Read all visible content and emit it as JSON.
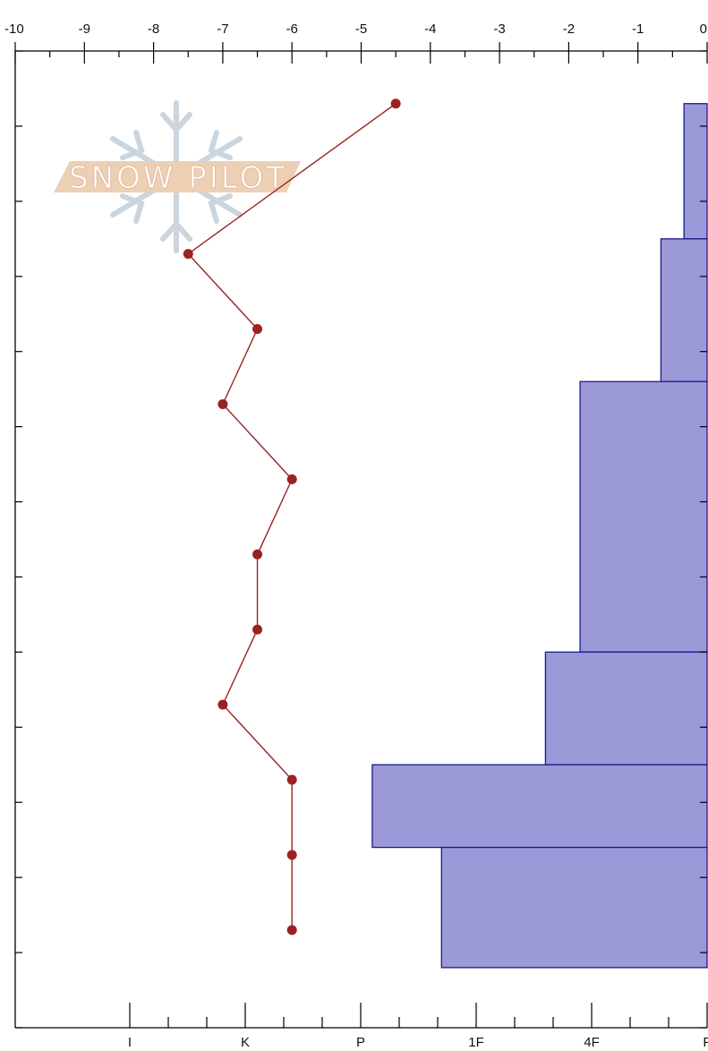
{
  "chart_data": {
    "type": "bar",
    "bar_color": "#9b99d8",
    "bar_edge_color": "#1a1a8c",
    "line_color": "#9a2222",
    "temperature_axis": {
      "position": "top",
      "range": [
        -10,
        0
      ],
      "ticks": [
        -10,
        -9,
        -8,
        -7,
        -6,
        -5,
        -4,
        -3,
        -2,
        -1,
        0
      ],
      "tick_labels": [
        "-10",
        "-9",
        "-8",
        "-7",
        "-6",
        "-5",
        "-4",
        "-3",
        "-2",
        "-1",
        "0"
      ]
    },
    "hardness_axis": {
      "position": "bottom",
      "scale": "ordinal",
      "ticks": [
        "I",
        "K",
        "P",
        "1F",
        "4F",
        "F"
      ],
      "tick_labels": [
        "I",
        "K",
        "P",
        "1F",
        "4F",
        "F"
      ]
    },
    "y_axis": {
      "labels_shown": false,
      "range": [
        0,
        13
      ],
      "minor_divisions": 13,
      "direction": "down"
    },
    "hardness_layers": [
      {
        "depth_top": 0.7,
        "depth_bottom": 2.5,
        "hardness": 0.2
      },
      {
        "depth_top": 2.5,
        "depth_bottom": 4.4,
        "hardness": 0.4
      },
      {
        "depth_top": 4.4,
        "depth_bottom": 8.0,
        "hardness": 1.1
      },
      {
        "depth_top": 8.0,
        "depth_bottom": 9.5,
        "hardness": 1.4
      },
      {
        "depth_top": 9.5,
        "depth_bottom": 10.6,
        "hardness": 2.9
      },
      {
        "depth_top": 10.6,
        "depth_bottom": 12.2,
        "hardness": 2.3
      }
    ],
    "temperature_profile": {
      "depths": [
        0.7,
        2.7,
        3.7,
        4.7,
        5.7,
        6.7,
        7.7,
        8.7,
        9.7,
        10.7,
        11.7
      ],
      "temperatures": [
        -4.5,
        -7.5,
        -6.5,
        -7.0,
        -6.0,
        -6.5,
        -6.5,
        -7.0,
        -6.0,
        -6.0,
        -6.0
      ]
    },
    "grid": false,
    "legend": "none"
  },
  "watermark": {
    "text": "SNOW PILOT"
  }
}
